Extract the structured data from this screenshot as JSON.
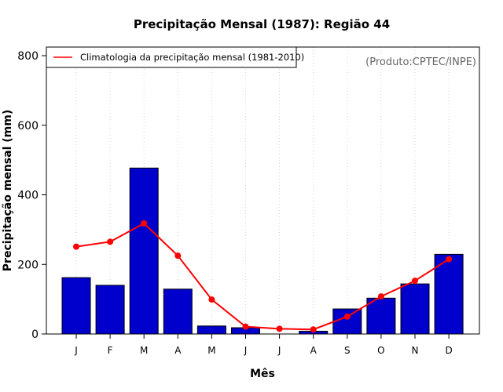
{
  "chart_data": {
    "type": "bar",
    "title": "Precipitação Mensal (1987): Região 44",
    "xlabel": "Mês",
    "ylabel": "Precipitação mensal (mm)",
    "ylim": [
      0,
      800
    ],
    "yticks": [
      0,
      200,
      400,
      600,
      800
    ],
    "categories": [
      "J",
      "F",
      "M",
      "A",
      "M",
      "J",
      "J",
      "A",
      "S",
      "O",
      "N",
      "D"
    ],
    "series": [
      {
        "name": "Precipitação mensal 1987",
        "type": "bar",
        "color": "#0000cc",
        "values": [
          162,
          140,
          477,
          129,
          23,
          18,
          0,
          8,
          72,
          103,
          144,
          229
        ]
      },
      {
        "name": "Climatologia da precipitação mensal (1981-2010)",
        "type": "line",
        "color": "#ff0000",
        "values": [
          251,
          265,
          318,
          225,
          99,
          21,
          15,
          13,
          50,
          108,
          153,
          215
        ]
      }
    ],
    "legend": {
      "position": "top-left",
      "label": "Climatologia da precipitação mensal (1981-2010)"
    },
    "grid": "vertical-dotted",
    "annotation": "(Produto:CPTEC/INPE)"
  }
}
